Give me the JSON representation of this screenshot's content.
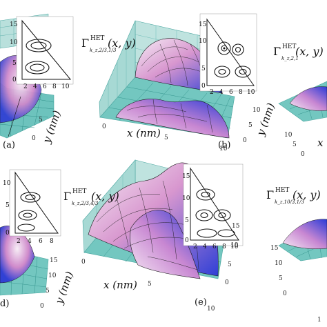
{
  "panels": {
    "a": {
      "tag": "(a)",
      "axes": {
        "y": "y (nm)"
      },
      "y_ticks": [
        "0",
        "5"
      ],
      "inset_y_ticks": [
        "0",
        "5",
        "10",
        "15"
      ],
      "inset_x_ticks": [
        "2",
        "4",
        "6",
        "8",
        "10"
      ]
    },
    "b": {
      "tag": "(b)",
      "func": {
        "symbol": "Γ",
        "sup": "HET",
        "sub": "k_z,2/3,1/3",
        "args": "(x, y)"
      },
      "axes": {
        "x": "x (nm)",
        "y": "y (nm)"
      },
      "x_ticks": [
        "0",
        "5",
        "10"
      ],
      "y_ticks": [
        "0",
        "5",
        "10"
      ],
      "inset_y_ticks": [
        "0",
        "5",
        "10",
        "15"
      ],
      "inset_x_ticks": [
        "2",
        "4",
        "6",
        "8",
        "10"
      ]
    },
    "c": {
      "func": {
        "symbol": "Γ",
        "sup": "HET",
        "sub": "k_z,2,1",
        "args": "(x, y)"
      },
      "y_ticks": [
        "10",
        "5",
        "0"
      ],
      "x_tick_partial": "x"
    },
    "d": {
      "tag": "d)",
      "axes": {
        "y": "y (nm)"
      },
      "y_ticks": [
        "0",
        "5",
        "10",
        "15"
      ],
      "inset_y_ticks": [
        "0",
        "5",
        "10"
      ],
      "inset_x_ticks": [
        "2",
        "4",
        "6",
        "8"
      ]
    },
    "e": {
      "tag": "(e)",
      "func": {
        "symbol": "Γ",
        "sup": "HET",
        "sub": "k_z,2/3,4/3",
        "args": "(x, y)"
      },
      "axes": {
        "x": "x (nm)"
      },
      "x_ticks": [
        "0",
        "5",
        "10"
      ],
      "y_ticks": [
        "15",
        "10",
        "5",
        "0"
      ],
      "inset_y_ticks": [
        "0",
        "5",
        "10",
        "15"
      ],
      "inset_x_ticks": [
        "2",
        "4",
        "6",
        "8",
        "10"
      ]
    },
    "f": {
      "func": {
        "symbol": "Γ",
        "sup": "HET",
        "sub": "k_z,10/3,1/3",
        "args": "(x, y)"
      },
      "y_ticks": [
        "15",
        "10",
        "5",
        "0"
      ],
      "x_tick_partial": "1"
    }
  },
  "colors": {
    "grid": "#4aa6a0",
    "surface_dark": "#2a3bd8",
    "surface_light": "#f4e6f2",
    "surface_pink": "#d58fc8",
    "mesh": "#1b1b1b",
    "background": "#ffffff"
  }
}
